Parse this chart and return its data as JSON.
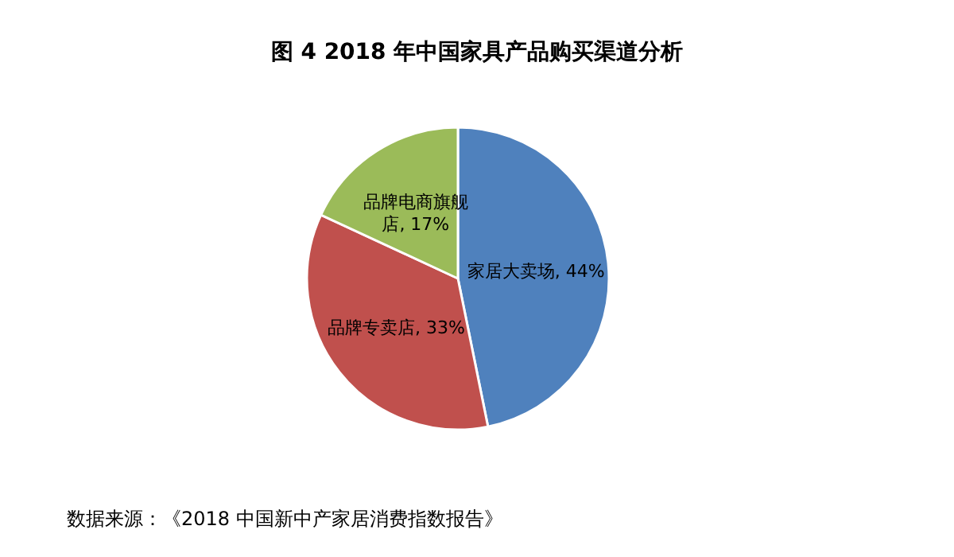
{
  "chart_data": {
    "type": "pie",
    "title": "图 4  2018 年中国家具产品购买渠道分析",
    "categories": [
      "家居大卖场",
      "品牌专卖店",
      "品牌电商旗舰店"
    ],
    "values": [
      44,
      33,
      17
    ],
    "colors": [
      "#4f81bd",
      "#c0504d",
      "#9bbb59"
    ],
    "value_labels": [
      ", 44%",
      ", 33%",
      ", 17%"
    ],
    "legend": false,
    "annotations": [
      "数据来源：《2018 中国新中产家居消费指数报告》"
    ]
  }
}
